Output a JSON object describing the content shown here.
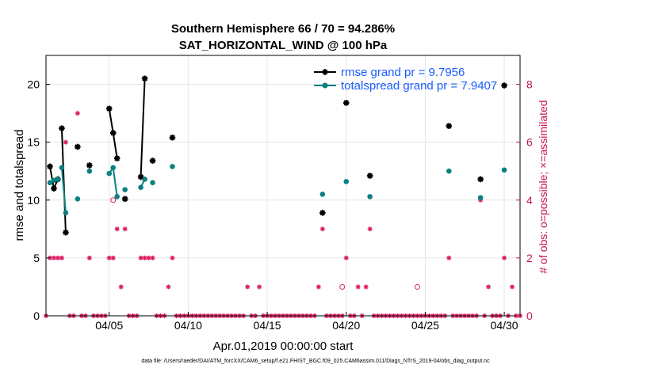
{
  "chart_data": {
    "type": "line",
    "title": "Southern Hemisphere 66 / 70 = 94.286%",
    "subtitle": "SAT_HORIZONTAL_WIND @ 100 hPa",
    "xlabel": "Apr.01,2019 00:00:00 start",
    "ylabel": "rmse and totalspread",
    "y2label": "# of obs: o=possible; ×=assimilated",
    "xlim": [
      1,
      31
    ],
    "ylim": [
      0,
      22.5
    ],
    "y2lim": [
      0,
      9
    ],
    "x_ticks": [
      5,
      10,
      15,
      20,
      25,
      30
    ],
    "x_tick_labels": [
      "04/05",
      "04/10",
      "04/15",
      "04/20",
      "04/25",
      "04/30"
    ],
    "y_ticks": [
      0,
      5,
      10,
      15,
      20
    ],
    "y_tick_labels": [
      "0",
      "5",
      "10",
      "15",
      "20"
    ],
    "y2_ticks": [
      0,
      2,
      4,
      6,
      8
    ],
    "y2_tick_labels": [
      "0",
      "2",
      "4",
      "6",
      "8"
    ],
    "footer": "data file: /Users/raeder/DAI/ATM_forcXX/CAM6_setup/f.e21.FHIST_BGC.f09_025.CAM6assim.011/Diags_NTrS_2019-04/obs_diag_output.nc",
    "legend_position": "top-right",
    "colors": {
      "rmse": "#000000",
      "spread": "#0b8080",
      "obs": "#dc1e64",
      "legend_text": "#1a5cff"
    },
    "series": [
      {
        "name": "rmse grand pr = 9.7956",
        "segments": [
          [
            [
              1.25,
              12.9
            ],
            [
              1.5,
              11.0
            ],
            [
              1.75,
              11.8
            ]
          ],
          [
            [
              2.0,
              16.2
            ],
            [
              2.25,
              7.2
            ]
          ],
          [
            [
              5.0,
              17.9
            ],
            [
              5.25,
              15.8
            ],
            [
              5.5,
              13.6
            ]
          ],
          [
            [
              7.0,
              12.0
            ],
            [
              7.25,
              20.5
            ]
          ]
        ],
        "points": [
          [
            1.25,
            12.9
          ],
          [
            1.5,
            11.0
          ],
          [
            1.75,
            11.8
          ],
          [
            2.0,
            16.2
          ],
          [
            2.25,
            7.2
          ],
          [
            3.0,
            14.6
          ],
          [
            3.75,
            13.0
          ],
          [
            5.0,
            17.9
          ],
          [
            5.25,
            15.8
          ],
          [
            5.5,
            13.6
          ],
          [
            6.0,
            10.1
          ],
          [
            7.0,
            12.0
          ],
          [
            7.25,
            20.5
          ],
          [
            7.75,
            13.4
          ],
          [
            9.0,
            15.4
          ],
          [
            18.5,
            8.9
          ],
          [
            20.0,
            18.4
          ],
          [
            21.5,
            12.1
          ],
          [
            26.5,
            16.4
          ],
          [
            28.5,
            11.8
          ],
          [
            30.0,
            19.9
          ]
        ]
      },
      {
        "name": "totalspread grand pr = 7.9407",
        "segments": [
          [
            [
              1.25,
              11.5
            ],
            [
              1.5,
              11.7
            ],
            [
              1.75,
              11.8
            ]
          ],
          [
            [
              2.0,
              12.8
            ],
            [
              2.25,
              8.9
            ]
          ],
          [
            [
              5.0,
              12.3
            ],
            [
              5.25,
              12.8
            ],
            [
              5.5,
              10.3
            ]
          ],
          [
            [
              7.0,
              11.1
            ],
            [
              7.25,
              11.8
            ]
          ]
        ],
        "points": [
          [
            1.25,
            11.5
          ],
          [
            1.5,
            11.7
          ],
          [
            1.75,
            11.8
          ],
          [
            2.0,
            12.8
          ],
          [
            2.25,
            8.9
          ],
          [
            3.0,
            10.1
          ],
          [
            3.75,
            12.5
          ],
          [
            5.0,
            12.3
          ],
          [
            5.25,
            12.8
          ],
          [
            5.5,
            10.3
          ],
          [
            6.0,
            10.9
          ],
          [
            7.0,
            11.1
          ],
          [
            7.25,
            11.8
          ],
          [
            7.75,
            11.5
          ],
          [
            9.0,
            12.9
          ],
          [
            18.5,
            10.5
          ],
          [
            20.0,
            11.6
          ],
          [
            21.5,
            10.3
          ],
          [
            26.5,
            12.5
          ],
          [
            28.5,
            10.2
          ],
          [
            30.0,
            12.6
          ]
        ]
      }
    ],
    "obs_assimilated": [
      [
        1.0,
        0
      ],
      [
        1.25,
        2
      ],
      [
        1.5,
        2
      ],
      [
        1.75,
        2
      ],
      [
        2.0,
        2
      ],
      [
        2.25,
        6
      ],
      [
        2.5,
        0
      ],
      [
        2.75,
        0
      ],
      [
        3.0,
        7
      ],
      [
        3.25,
        0
      ],
      [
        3.5,
        0
      ],
      [
        3.75,
        2
      ],
      [
        4.0,
        0
      ],
      [
        4.25,
        0
      ],
      [
        4.5,
        0
      ],
      [
        4.75,
        0
      ],
      [
        5.0,
        2
      ],
      [
        5.25,
        2
      ],
      [
        5.5,
        3
      ],
      [
        5.75,
        1
      ],
      [
        6.0,
        3
      ],
      [
        6.25,
        0
      ],
      [
        6.5,
        0
      ],
      [
        6.75,
        0
      ],
      [
        7.0,
        2
      ],
      [
        7.25,
        2
      ],
      [
        7.5,
        2
      ],
      [
        7.75,
        2
      ],
      [
        8.0,
        0
      ],
      [
        8.25,
        0
      ],
      [
        8.5,
        0
      ],
      [
        8.75,
        1
      ],
      [
        9.0,
        2
      ],
      [
        9.25,
        0
      ],
      [
        9.5,
        0
      ],
      [
        9.75,
        0
      ],
      [
        10.0,
        0
      ],
      [
        10.25,
        0
      ],
      [
        10.5,
        0
      ],
      [
        10.75,
        0
      ],
      [
        11.0,
        0
      ],
      [
        11.25,
        0
      ],
      [
        11.5,
        0
      ],
      [
        11.75,
        0
      ],
      [
        12.0,
        0
      ],
      [
        12.25,
        0
      ],
      [
        12.5,
        0
      ],
      [
        12.75,
        0
      ],
      [
        13.0,
        0
      ],
      [
        13.25,
        0
      ],
      [
        13.5,
        0
      ],
      [
        13.75,
        1
      ],
      [
        14.0,
        0
      ],
      [
        14.25,
        0
      ],
      [
        14.5,
        1
      ],
      [
        14.75,
        0
      ],
      [
        15.0,
        0
      ],
      [
        15.25,
        0
      ],
      [
        15.5,
        0
      ],
      [
        15.75,
        0
      ],
      [
        16.0,
        0
      ],
      [
        16.25,
        0
      ],
      [
        16.5,
        0
      ],
      [
        16.75,
        0
      ],
      [
        17.0,
        0
      ],
      [
        17.25,
        0
      ],
      [
        17.5,
        0
      ],
      [
        17.75,
        0
      ],
      [
        18.0,
        0
      ],
      [
        18.25,
        1
      ],
      [
        18.5,
        3
      ],
      [
        18.75,
        0
      ],
      [
        19.0,
        0
      ],
      [
        19.25,
        0
      ],
      [
        19.5,
        0
      ],
      [
        19.75,
        0
      ],
      [
        20.0,
        2
      ],
      [
        20.25,
        0
      ],
      [
        20.5,
        0
      ],
      [
        20.75,
        1
      ],
      [
        21.0,
        0
      ],
      [
        21.25,
        1
      ],
      [
        21.5,
        3
      ],
      [
        21.75,
        0
      ],
      [
        22.0,
        0
      ],
      [
        22.25,
        0
      ],
      [
        22.5,
        0
      ],
      [
        22.75,
        0
      ],
      [
        23.0,
        0
      ],
      [
        23.25,
        0
      ],
      [
        23.5,
        0
      ],
      [
        23.75,
        0
      ],
      [
        24.0,
        0
      ],
      [
        24.25,
        0
      ],
      [
        24.5,
        0
      ],
      [
        24.75,
        0
      ],
      [
        25.0,
        0
      ],
      [
        25.25,
        0
      ],
      [
        25.5,
        0
      ],
      [
        25.75,
        0
      ],
      [
        26.0,
        0
      ],
      [
        26.25,
        0
      ],
      [
        26.5,
        2
      ],
      [
        26.75,
        0
      ],
      [
        27.0,
        0
      ],
      [
        27.25,
        0
      ],
      [
        27.5,
        0
      ],
      [
        27.75,
        0
      ],
      [
        28.0,
        0
      ],
      [
        28.25,
        0
      ],
      [
        28.5,
        4
      ],
      [
        28.75,
        0
      ],
      [
        29.0,
        1
      ],
      [
        29.25,
        0
      ],
      [
        29.5,
        0
      ],
      [
        29.75,
        0
      ],
      [
        30.0,
        2
      ],
      [
        30.25,
        0
      ],
      [
        30.5,
        1
      ],
      [
        30.75,
        0
      ],
      [
        31.0,
        0
      ]
    ],
    "obs_possible": [
      [
        5.25,
        4
      ],
      [
        19.75,
        1
      ],
      [
        24.5,
        1
      ]
    ]
  }
}
